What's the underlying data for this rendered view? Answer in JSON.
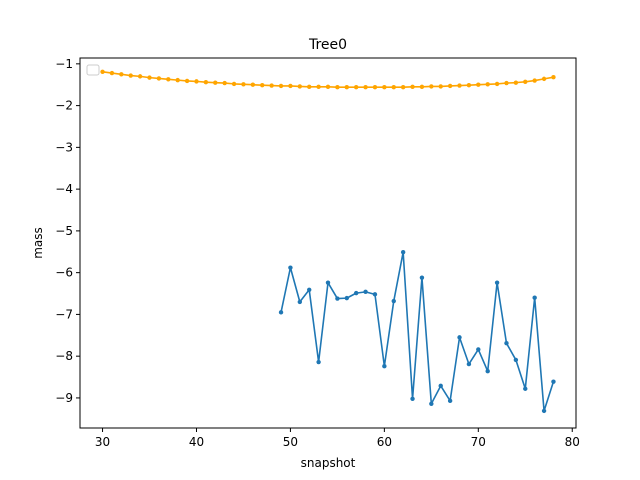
{
  "chart_data": {
    "type": "line",
    "title": "Tree0",
    "xlabel": "snapshot",
    "ylabel": "mass",
    "xlim": [
      27.6,
      80.4
    ],
    "ylim": [
      -9.72,
      -0.86
    ],
    "xticks": [
      30,
      40,
      50,
      60,
      70,
      80
    ],
    "yticks": [
      -9,
      -8,
      -7,
      -6,
      -5,
      -4,
      -3,
      -2,
      -1
    ],
    "grid": false,
    "legend": {
      "placement": "top-left",
      "entries": []
    },
    "series": [
      {
        "color": "#1f77b4",
        "x": [
          49,
          50,
          51,
          52,
          53,
          54,
          55,
          56,
          57,
          58,
          59,
          60,
          61,
          62,
          63,
          64,
          65,
          66,
          67,
          68,
          69,
          70,
          71,
          72,
          73,
          74,
          75,
          76,
          77,
          78
        ],
        "y": [
          -6.95,
          -5.88,
          -6.7,
          -6.41,
          -8.14,
          -6.24,
          -6.62,
          -6.61,
          -6.49,
          -6.46,
          -6.52,
          -8.24,
          -6.68,
          -5.51,
          -9.02,
          -6.12,
          -9.14,
          -8.71,
          -9.07,
          -7.55,
          -8.19,
          -7.84,
          -8.36,
          -6.24,
          -7.69,
          -8.09,
          -8.78,
          -6.6,
          -9.31,
          -8.61
        ]
      },
      {
        "color": "#ffa500",
        "x": [
          30,
          31,
          32,
          33,
          34,
          35,
          36,
          37,
          38,
          39,
          40,
          41,
          42,
          43,
          44,
          45,
          46,
          47,
          48,
          49,
          50,
          51,
          52,
          53,
          54,
          55,
          56,
          57,
          58,
          59,
          60,
          61,
          62,
          63,
          64,
          65,
          66,
          67,
          68,
          69,
          70,
          71,
          72,
          73,
          74,
          75,
          76,
          77,
          78
        ],
        "y": [
          -1.19,
          -1.22,
          -1.25,
          -1.28,
          -1.3,
          -1.33,
          -1.35,
          -1.37,
          -1.39,
          -1.41,
          -1.42,
          -1.44,
          -1.45,
          -1.46,
          -1.48,
          -1.49,
          -1.5,
          -1.51,
          -1.52,
          -1.53,
          -1.53,
          -1.54,
          -1.55,
          -1.55,
          -1.55,
          -1.56,
          -1.56,
          -1.56,
          -1.56,
          -1.56,
          -1.56,
          -1.56,
          -1.56,
          -1.55,
          -1.55,
          -1.54,
          -1.54,
          -1.53,
          -1.52,
          -1.51,
          -1.5,
          -1.49,
          -1.48,
          -1.46,
          -1.45,
          -1.43,
          -1.4,
          -1.36,
          -1.32
        ]
      }
    ]
  }
}
